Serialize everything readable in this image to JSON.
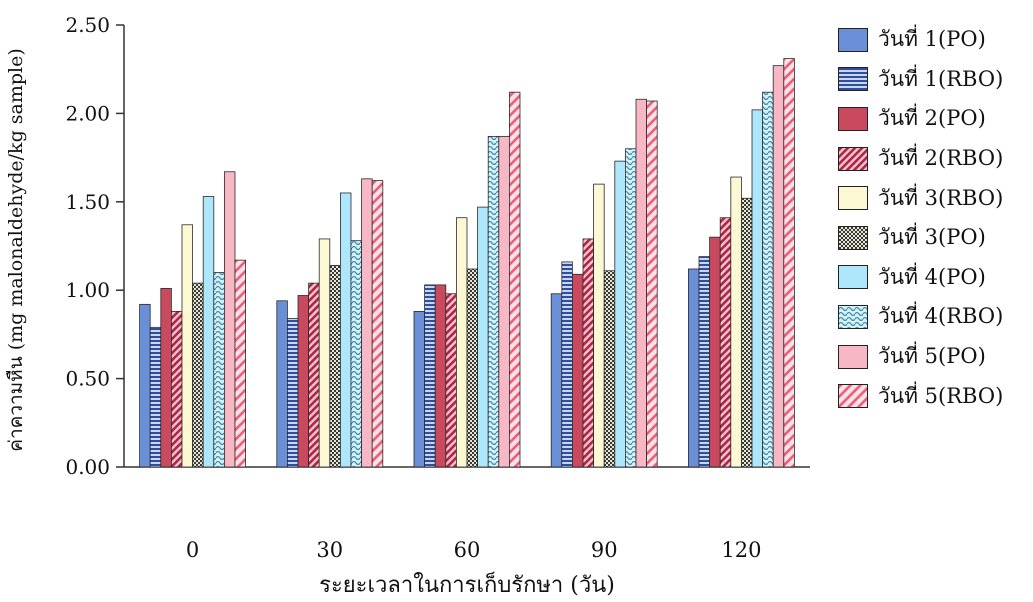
{
  "chart_data": {
    "type": "bar",
    "xlabel": "ระยะเวลาในการเก็บรักษา (วัน)",
    "ylabel": "ค่าความหืน (mg malonaldehyde/kg sample)",
    "categories": [
      "0",
      "30",
      "60",
      "90",
      "120"
    ],
    "ylim": [
      0,
      2.5
    ],
    "yticks": [
      "0.00",
      "0.50",
      "1.00",
      "1.50",
      "2.00",
      "2.50"
    ],
    "legend_position": "right",
    "series": [
      {
        "name": "วันที่ 1(PO)",
        "values": [
          0.92,
          0.94,
          0.88,
          0.98,
          1.12
        ],
        "color": "#6b8fd6",
        "pattern": "solid"
      },
      {
        "name": "วันที่ 1(RBO)",
        "values": [
          0.79,
          0.84,
          1.03,
          1.16,
          1.19
        ],
        "color": "#4e73c9",
        "pattern": "hlines"
      },
      {
        "name": "วันที่ 2(PO)",
        "values": [
          1.01,
          0.97,
          1.03,
          1.09,
          1.3
        ],
        "color": "#c94a5f",
        "pattern": "solid"
      },
      {
        "name": "วันที่ 2(RBO)",
        "values": [
          0.88,
          1.04,
          0.98,
          1.29,
          1.41
        ],
        "color": "#c23a56",
        "pattern": "diag-dense"
      },
      {
        "name": "วันที่ 3(RBO)",
        "values": [
          1.37,
          1.29,
          1.41,
          1.6,
          1.64
        ],
        "color": "#fbf8d3",
        "pattern": "solid"
      },
      {
        "name": "วันที่ 3(PO)",
        "values": [
          1.04,
          1.14,
          1.12,
          1.11,
          1.52
        ],
        "color": "#b7b7a0",
        "pattern": "check"
      },
      {
        "name": "วันที่ 4(PO)",
        "values": [
          1.53,
          1.55,
          1.47,
          1.73,
          2.02
        ],
        "color": "#aee7fb",
        "pattern": "solid"
      },
      {
        "name": "วันที่ 4(RBO)",
        "values": [
          1.1,
          1.28,
          1.87,
          1.8,
          2.12
        ],
        "color": "#7fc7dc",
        "pattern": "wave"
      },
      {
        "name": "วันที่ 5(PO)",
        "values": [
          1.67,
          1.63,
          1.87,
          2.08,
          2.27
        ],
        "color": "#f7b7c4",
        "pattern": "solid"
      },
      {
        "name": "วันที่ 5(RBO)",
        "values": [
          1.17,
          1.62,
          2.12,
          2.07,
          2.31
        ],
        "color": "#f06b85",
        "pattern": "diag"
      }
    ]
  }
}
